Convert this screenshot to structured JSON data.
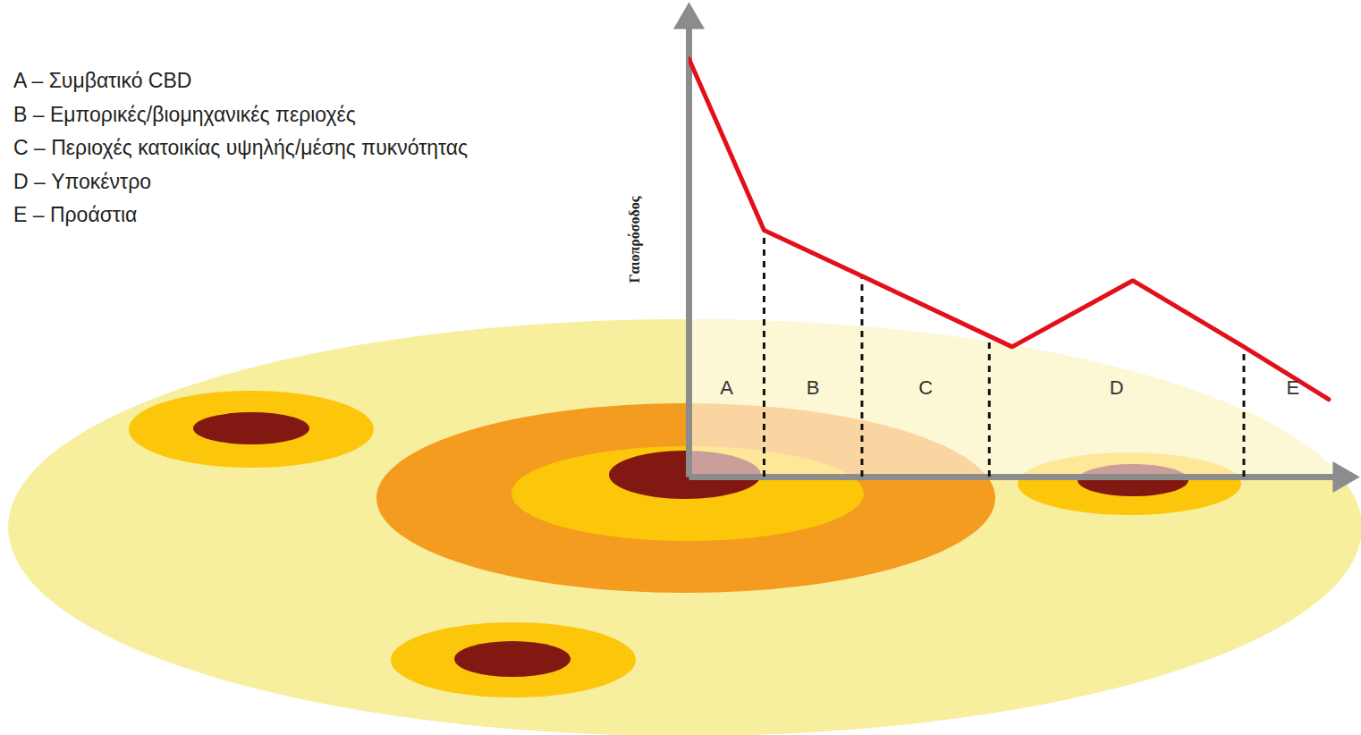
{
  "chart_data": {
    "type": "line",
    "y_label": "Γαιοπρόσοδος",
    "x": [
      0,
      11.5,
      26.5,
      49.5,
      68,
      85,
      98
    ],
    "values": [
      91.5,
      54,
      44,
      28.5,
      43,
      28.5,
      17
    ],
    "color": "#e3101a",
    "xlim": [
      0,
      100
    ],
    "ylim": [
      0,
      100
    ],
    "tick_labels": false,
    "regions": [
      {
        "label": "A",
        "from": 0,
        "to": 11.5
      },
      {
        "label": "B",
        "from": 11.5,
        "to": 26.5
      },
      {
        "label": "C",
        "from": 26.5,
        "to": 46
      },
      {
        "label": "D",
        "from": 46,
        "to": 85
      },
      {
        "label": "E",
        "from": 85,
        "to": 100
      }
    ],
    "annotations": [
      "A – Συμβατικό CBD",
      "B – Εμπορικές/βιομηχανικές περιοχές",
      "C – Περιοχές κατοικίας υψηλής/μέσης πυκνότητας",
      "D – Υποκέντρο",
      "E – Προάστια"
    ]
  }
}
